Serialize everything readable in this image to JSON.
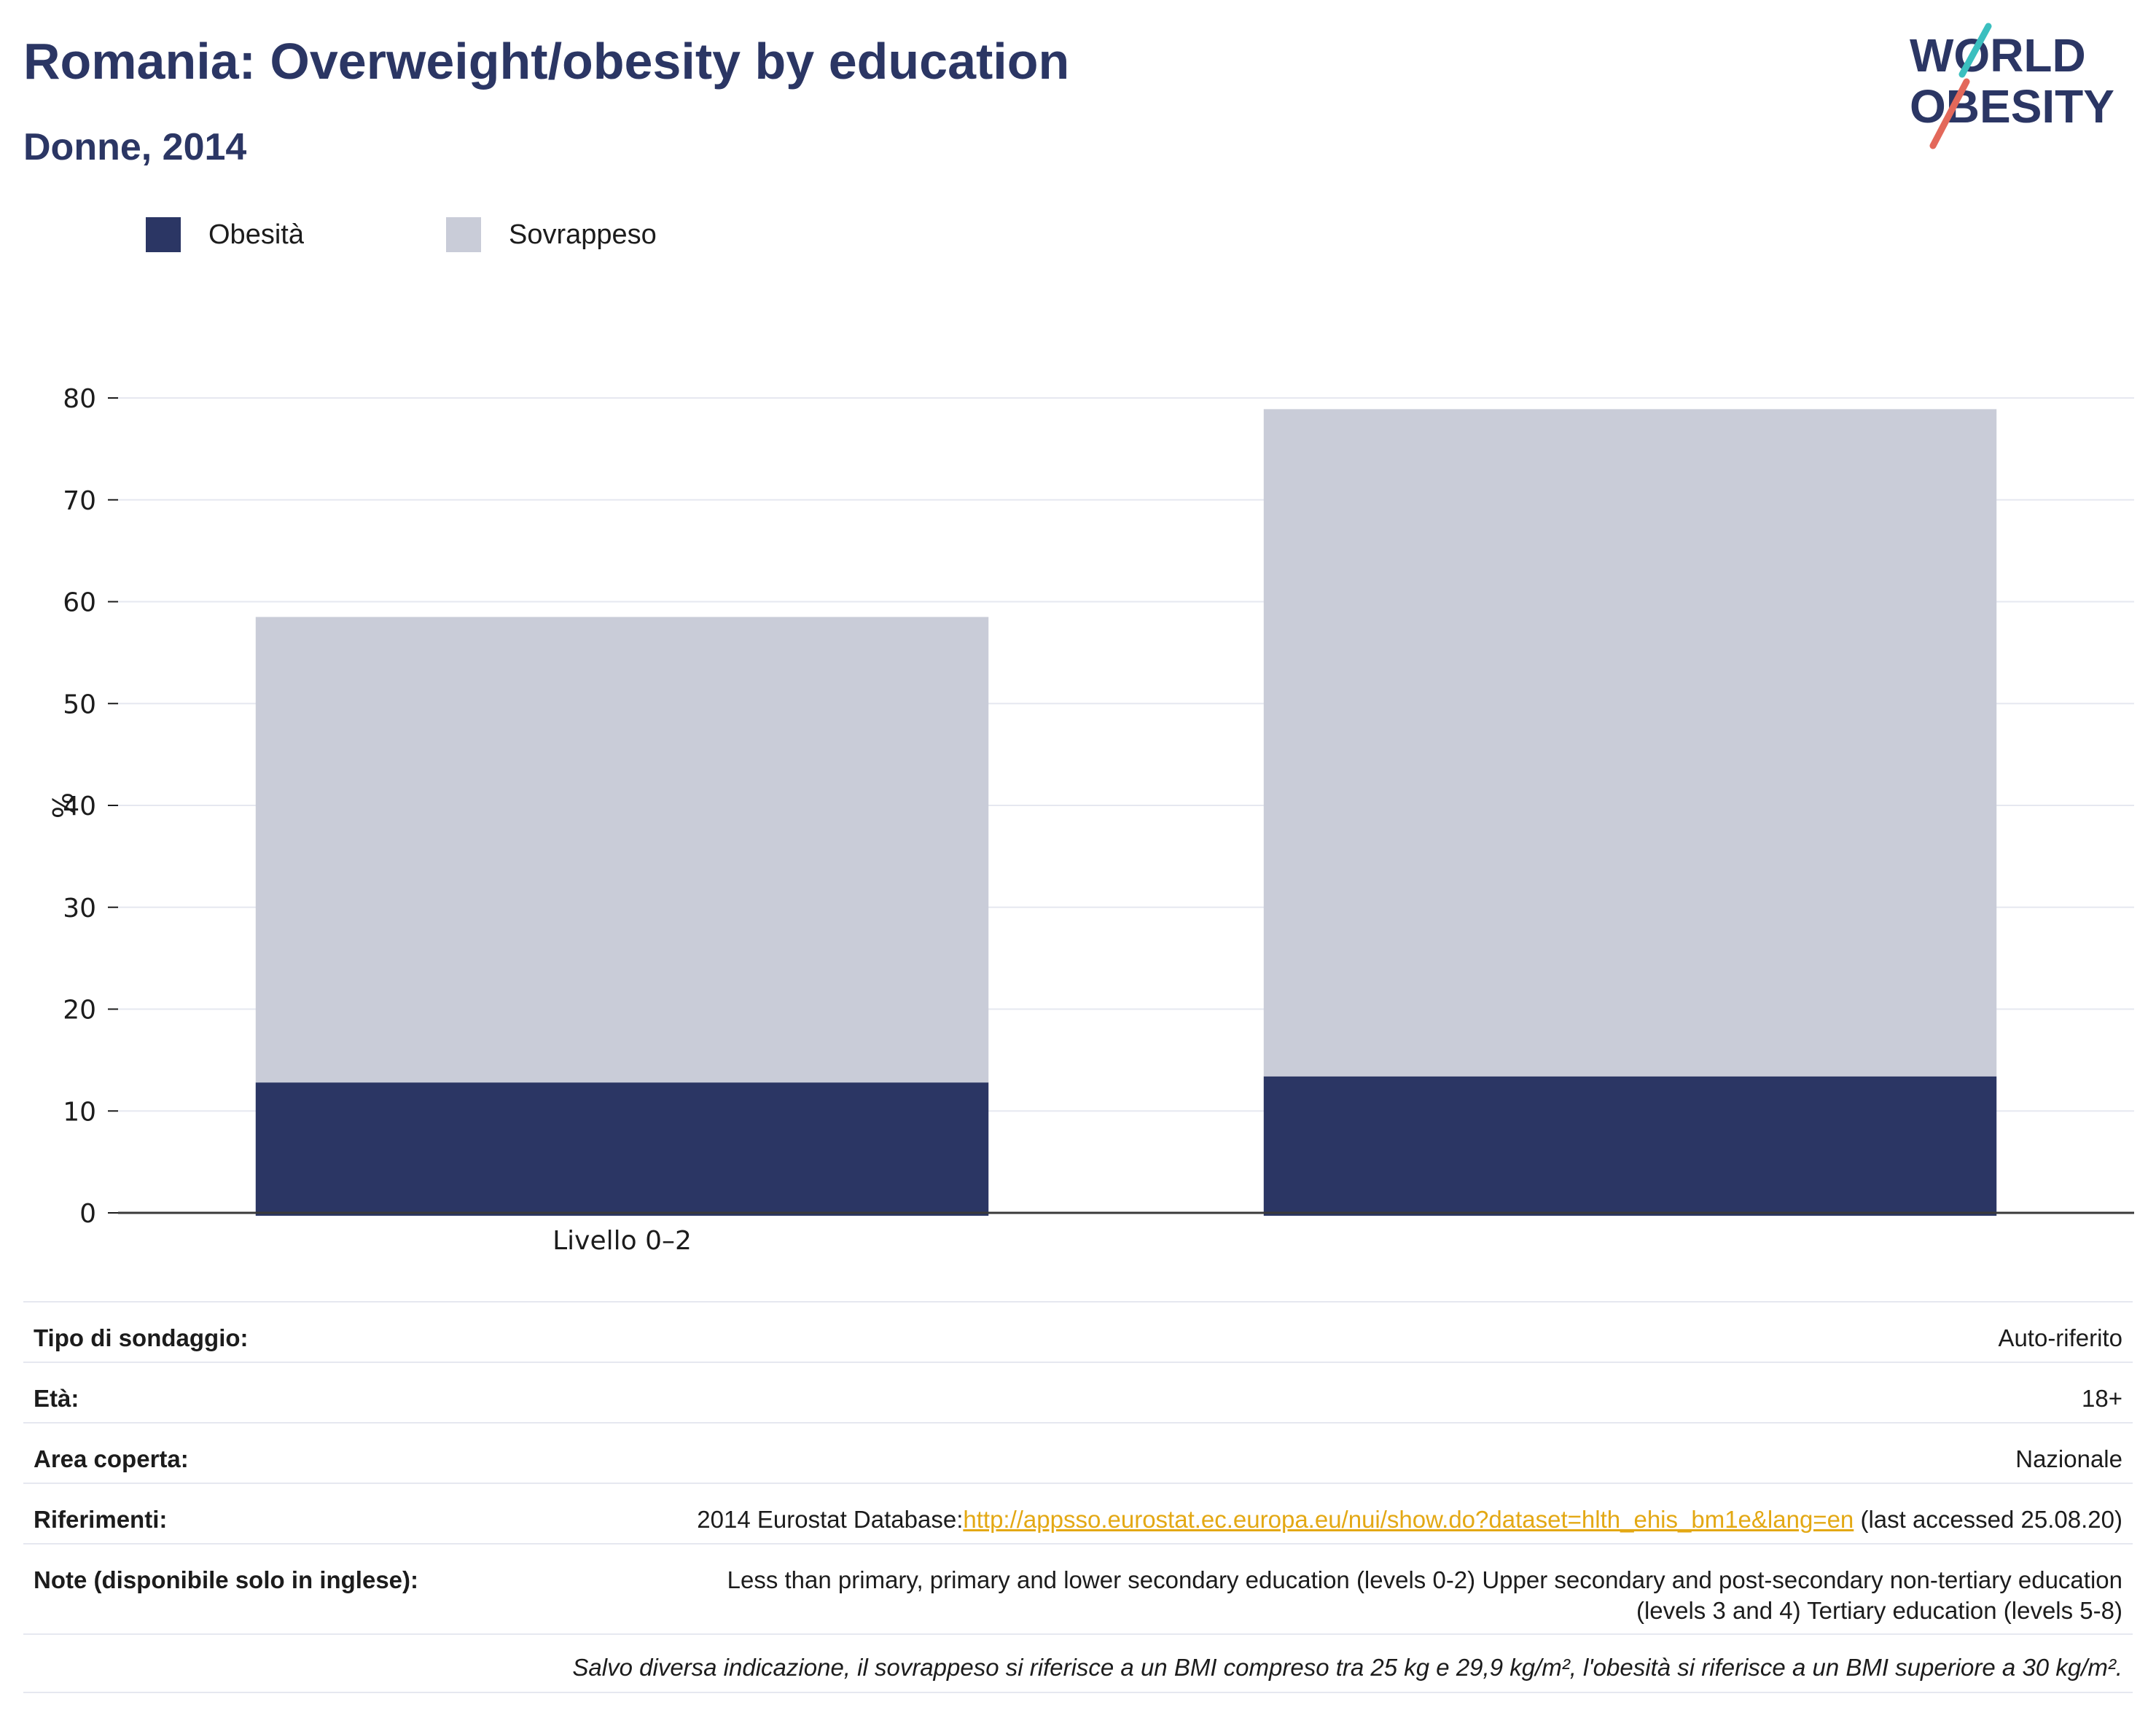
{
  "header": {
    "title": "Romania: Overweight/obesity by education",
    "subtitle": "Donne, 2014"
  },
  "logo": {
    "line1": "WORLD",
    "line2": "OBESITY",
    "accent_teal": "#3bbfbf",
    "accent_red": "#e3685a",
    "text_color": "#2b3664"
  },
  "chart_data": {
    "type": "bar",
    "stacked": true,
    "categories": [
      "Livello 0–2",
      ""
    ],
    "series": [
      {
        "name": "Obesità",
        "color": "#2b3664",
        "values": [
          12.8,
          13.4
        ]
      },
      {
        "name": "Sovrappeso",
        "color": "#c9ccd8",
        "values": [
          45.7,
          65.5
        ]
      }
    ],
    "xlabel": "",
    "ylabel": "%",
    "ylim": [
      0,
      80
    ],
    "yticks": [
      0,
      10,
      20,
      30,
      40,
      50,
      60,
      70,
      80
    ],
    "grid": true,
    "legend_position": "top-left"
  },
  "meta": {
    "rows": [
      {
        "key": "Tipo di sondaggio:",
        "value": "Auto-riferito"
      },
      {
        "key": "Età:",
        "value": "18+"
      },
      {
        "key": "Area coperta:",
        "value": "Nazionale"
      }
    ],
    "references": {
      "key": "Riferimenti:",
      "prefix": "2014 Eurostat Database:",
      "link": "http://appsso.eurostat.ec.europa.eu/nui/show.do?dataset=hlth_ehis_bm1e&lang=en",
      "suffix": " (last accessed 25.08.20)"
    },
    "notes": {
      "key": "Note (disponibile solo in inglese):",
      "line1": "Less than primary, primary and lower secondary education (levels 0-2) Upper secondary and post-secondary non-tertiary education",
      "line2": "(levels 3 and 4) Tertiary education (levels 5-8)"
    },
    "footnote": "Salvo diversa indicazione, il sovrappeso si riferisce a un BMI compreso tra 25 kg e 29,9 kg/m², l'obesità si riferisce a un BMI superiore a 30 kg/m²."
  }
}
